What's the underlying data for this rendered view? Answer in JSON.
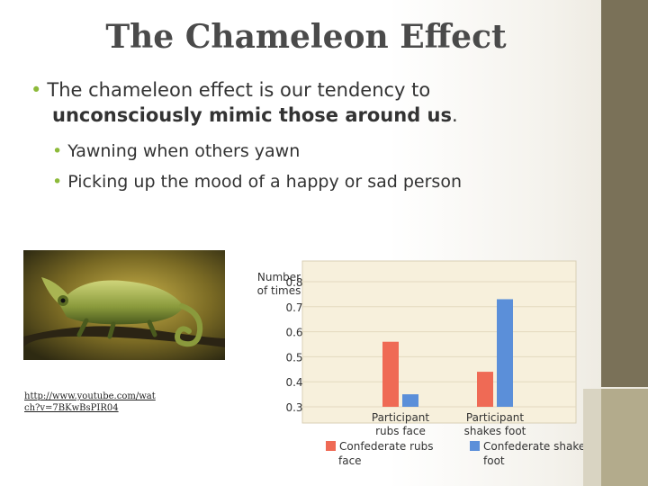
{
  "slide": {
    "title": "The Chameleon Effect",
    "bullet_main_plain": "The chameleon effect is our tendency to",
    "bullet_main_bold": "unconsciously mimic those around us",
    "bullet_main_end": ".",
    "sub_bullets": [
      "Yawning when others yawn",
      "Picking up the mood of a happy or sad person"
    ],
    "link_text": "http://www.youtube.com/watch?v=7BKwBsPIR04",
    "colors": {
      "title": "#4a4a4a",
      "bullet_dot": "#8dba3a",
      "side_bar": "#7a7158",
      "side_bar_light": "#b3ab8c"
    }
  },
  "chart_data": {
    "type": "bar",
    "ylabel": "Number of times",
    "ylim": [
      0.3,
      0.8
    ],
    "yticks": [
      "0.8",
      "0.7",
      "0.6",
      "0.5",
      "0.4",
      "0.3"
    ],
    "categories": [
      "Participant rubs face",
      "Participant shakes foot"
    ],
    "series": [
      {
        "name": "Confederate rubs face",
        "color": "#ef6a55",
        "values": [
          0.56,
          0.44
        ]
      },
      {
        "name": "Confederate shakes foot",
        "color": "#5b8fd9",
        "values": [
          0.35,
          0.73
        ]
      }
    ],
    "legend_position": "bottom",
    "grid": true
  }
}
